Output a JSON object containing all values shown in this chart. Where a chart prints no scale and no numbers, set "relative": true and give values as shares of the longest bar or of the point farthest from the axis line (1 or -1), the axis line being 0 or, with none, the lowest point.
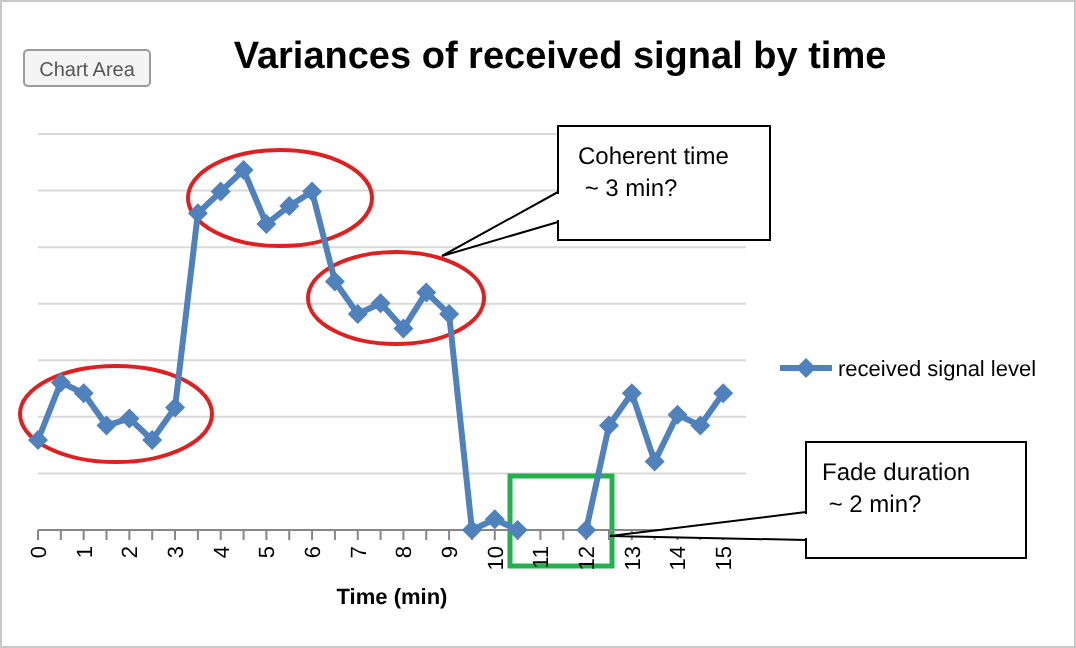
{
  "chart_data": {
    "type": "line",
    "title": "Variances of received signal by time",
    "xlabel": "Time (min)",
    "x": [
      0,
      0.5,
      1,
      1.5,
      2,
      2.5,
      3,
      3.5,
      4,
      4.5,
      5,
      5.5,
      6,
      6.5,
      7,
      7.5,
      8,
      8.5,
      9,
      9.5,
      10,
      10.5,
      12,
      12.5,
      13,
      13.5,
      14,
      14.5,
      15
    ],
    "series": [
      {
        "name": "received signal level",
        "color": "#4f81bd",
        "values": [
          0.25,
          0.41,
          0.38,
          0.29,
          0.31,
          0.25,
          0.34,
          0.88,
          0.94,
          1,
          0.85,
          0.9,
          0.94,
          0.69,
          0.6,
          0.63,
          0.56,
          0.66,
          0.6,
          0,
          0.03,
          0,
          0,
          0.29,
          0.38,
          0.19,
          0.32,
          0.29,
          0.38
        ]
      }
    ],
    "relative": true,
    "xlim": [
      0,
      15.5
    ],
    "xticks": [
      0,
      {
        "value": 0.5,
        "label": null
      },
      1,
      {
        "value": 1.5,
        "label": null
      },
      2,
      {
        "value": 2.5,
        "label": null
      },
      3,
      {
        "value": 3.5,
        "label": null
      },
      4,
      {
        "value": 4.5,
        "label": null
      },
      5,
      {
        "value": 5.5,
        "label": null
      },
      6,
      {
        "value": 6.5,
        "label": null
      },
      7,
      {
        "value": 7.5,
        "label": null
      },
      8,
      {
        "value": 8.5,
        "label": null
      },
      9,
      {
        "value": 9.5,
        "label": null
      },
      10,
      {
        "value": 10.5,
        "label": null
      },
      11,
      {
        "value": 11.5,
        "label": null
      },
      12,
      {
        "value": 12.5,
        "label": null
      },
      13,
      {
        "value": 13.5,
        "label": null
      },
      14,
      {
        "value": 14.5,
        "label": null
      },
      15,
      {
        "value": 15.5,
        "label": null
      }
    ],
    "grid": "y",
    "legend": "right",
    "marker": "diamond",
    "line_style": "solid",
    "annotations": [
      "Chart Area",
      "Coherent time\n ~ 3 min?",
      "Fade duration\n ~ 2 min?"
    ]
  }
}
